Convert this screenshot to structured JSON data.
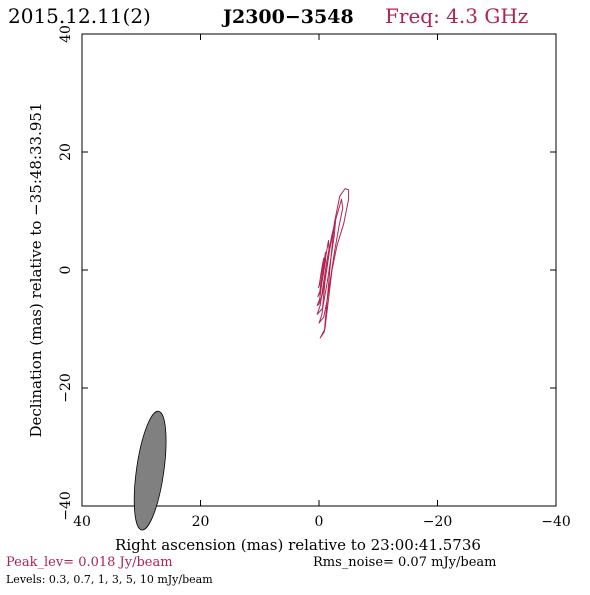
{
  "header": {
    "date": "2015.12.11(2)",
    "source": "J2300−3548",
    "freq": "Freq: 4.3 GHz"
  },
  "footer": {
    "peak": "Peak_lev=  0.018 Jy/beam",
    "rms": "Rms_noise= 0.07 mJy/beam",
    "levels": "Levels: 0.3,  0.7,    1,    3,    5,   10  mJy/beam"
  },
  "colors": {
    "accent": "#b0234f",
    "beam": "#808080",
    "axis": "#000000"
  },
  "chart_data": {
    "type": "contour",
    "xlabel": "Right ascension (mas) relative to 23:00:41.5736",
    "ylabel": "Declination (mas) relative to −35:48:33.951",
    "xlim": [
      40,
      -40
    ],
    "ylim": [
      -40,
      40
    ],
    "xticks": [
      40,
      20,
      0,
      -20,
      -40
    ],
    "yticks": [
      -40,
      -20,
      0,
      20,
      40
    ],
    "xtick_labels": [
      "40",
      "20",
      "0",
      "−20",
      "−40"
    ],
    "ytick_labels": [
      "−40",
      "−20",
      "0",
      "20",
      "40"
    ],
    "grid": false,
    "contours": [
      {
        "level": 0.3,
        "points": [
          [
            -0.2,
            -11.5
          ],
          [
            -0.9,
            -10.5
          ],
          [
            -1.3,
            -6
          ],
          [
            -2.0,
            2
          ],
          [
            -2.6,
            8
          ],
          [
            -3.5,
            12.5
          ],
          [
            -4.4,
            13.8
          ],
          [
            -5.0,
            13.6
          ],
          [
            -5.0,
            12
          ],
          [
            -4.2,
            8
          ],
          [
            -3.0,
            4
          ],
          [
            -2.2,
            0
          ],
          [
            -1.6,
            -5
          ],
          [
            -1.0,
            -10
          ]
        ]
      },
      {
        "level": 0.7,
        "points": [
          [
            0.0,
            -9
          ],
          [
            -0.5,
            -7.5
          ],
          [
            -1.0,
            -2
          ],
          [
            -1.8,
            3.5
          ],
          [
            -2.8,
            8.5
          ],
          [
            -3.8,
            12.0
          ],
          [
            -4.0,
            10.5
          ],
          [
            -3.4,
            7.5
          ],
          [
            -2.6,
            3
          ],
          [
            -2.0,
            -1
          ],
          [
            -1.4,
            -5
          ],
          [
            -0.8,
            -8
          ]
        ]
      },
      {
        "level": 1,
        "points": [
          [
            0.3,
            -7.5
          ],
          [
            -0.2,
            -6
          ],
          [
            -0.8,
            -2
          ],
          [
            -1.4,
            2
          ],
          [
            -2.2,
            6
          ],
          [
            -2.8,
            8.5
          ],
          [
            -2.6,
            6.0
          ],
          [
            -2.0,
            2
          ],
          [
            -1.4,
            -2
          ],
          [
            -0.6,
            -6.5
          ]
        ]
      },
      {
        "level": 3,
        "points": [
          [
            0.3,
            -6
          ],
          [
            -0.1,
            -5
          ],
          [
            -0.5,
            -2
          ],
          [
            -1.0,
            1.5
          ],
          [
            -1.6,
            5.0
          ],
          [
            -1.7,
            3
          ],
          [
            -1.2,
            -0.5
          ],
          [
            -0.6,
            -4
          ],
          [
            0.0,
            -5.8
          ]
        ]
      },
      {
        "level": 5,
        "points": [
          [
            0.2,
            -4.5
          ],
          [
            -0.1,
            -4
          ],
          [
            -0.4,
            -1.5
          ],
          [
            -0.8,
            1.0
          ],
          [
            -1.1,
            3.0
          ],
          [
            -1.1,
            1.5
          ],
          [
            -0.7,
            -1
          ],
          [
            -0.2,
            -3.5
          ]
        ]
      },
      {
        "level": 10,
        "points": [
          [
            0.1,
            -3
          ],
          [
            -0.1,
            -2.5
          ],
          [
            -0.3,
            -0.8
          ],
          [
            -0.6,
            1.0
          ],
          [
            -0.8,
            2.0
          ],
          [
            -0.6,
            0.5
          ],
          [
            -0.2,
            -1.5
          ],
          [
            0.0,
            -2.8
          ]
        ]
      }
    ],
    "beam": {
      "x": 28.5,
      "y": -34,
      "major": 9.2,
      "minor": 2.1,
      "pa_deg": 8
    }
  }
}
